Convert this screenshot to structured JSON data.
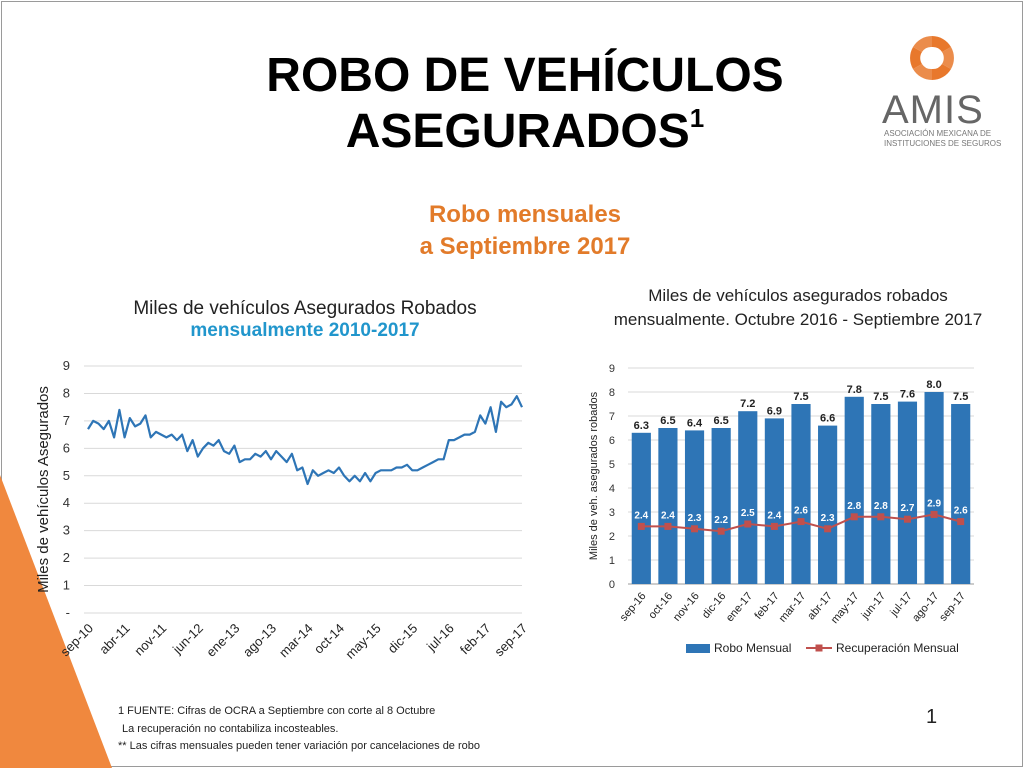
{
  "slide": {
    "title_line1": "ROBO DE VEHÍCULOS",
    "title_line2": "ASEGURADOS",
    "title_sup": "1",
    "subtitle_line1": "Robo mensuales",
    "subtitle_line2": "a Septiembre 2017",
    "logo_word": "AMIS",
    "logo_tag_line1": "ASOCIACIÓN MEXICANA DE",
    "logo_tag_line2": "INSTITUCIONES DE SEGUROS",
    "footnote1": "1 FUENTE: Cifras de OCRA a Septiembre con corte al 8 Octubre",
    "footnote2": "La recuperación no contabiliza incosteables.",
    "footnote3": "** Las cifras mensuales pueden tener variación por cancelaciones de robo",
    "page_number": "1",
    "colors": {
      "accent_orange": "#e27b2a",
      "title_blue": "#2196cc",
      "line_blue": "#2e75b6",
      "bar_blue": "#2e75b6",
      "marker_red": "#c0504d"
    }
  },
  "chart_data": [
    {
      "type": "line",
      "title": "Miles de vehículos Asegurados Robados",
      "title_accent": "mensualmente 2010-2017",
      "ylabel": "Miles de vehículos Asegurados",
      "ylim": [
        0,
        9
      ],
      "y_ticks": [
        "-",
        "1",
        "2",
        "3",
        "4",
        "5",
        "6",
        "7",
        "8",
        "9"
      ],
      "x_tick_labels": [
        "sep-10",
        "abr-11",
        "nov-11",
        "jun-12",
        "ene-13",
        "ago-13",
        "mar-14",
        "oct-14",
        "may-15",
        "dic-15",
        "jul-16",
        "feb-17",
        "sep-17"
      ],
      "grid": true,
      "series": [
        {
          "values": [
            6.7,
            7.0,
            6.9,
            6.7,
            7.0,
            6.4,
            7.4,
            6.4,
            7.1,
            6.8,
            6.9,
            7.2,
            6.4,
            6.6,
            6.5,
            6.4,
            6.5,
            6.3,
            6.5,
            5.9,
            6.3,
            5.7,
            6.0,
            6.2,
            6.1,
            6.3,
            5.9,
            5.8,
            6.1,
            5.5,
            5.6,
            5.6,
            5.8,
            5.7,
            5.9,
            5.6,
            5.9,
            5.7,
            5.5,
            5.8,
            5.2,
            5.3,
            4.7,
            5.2,
            5.0,
            5.1,
            5.2,
            5.1,
            5.3,
            5.0,
            4.8,
            5.0,
            4.8,
            5.1,
            4.8,
            5.1,
            5.2,
            5.2,
            5.2,
            5.3,
            5.3,
            5.4,
            5.2,
            5.2,
            5.3,
            5.4,
            5.5,
            5.6,
            5.6,
            6.3,
            6.3,
            6.4,
            6.5,
            6.5,
            6.6,
            7.2,
            6.9,
            7.5,
            6.6,
            7.7,
            7.5,
            7.6,
            7.9,
            7.5
          ]
        }
      ]
    },
    {
      "type": "bar",
      "title_line1": "Miles de vehículos asegurados robados",
      "title_line2": "mensualmente. Octubre 2016 - Septiembre 2017",
      "ylabel": "Miles de veh. asegurados robados",
      "ylim": [
        0,
        9
      ],
      "y_ticks": [
        "0",
        "1",
        "2",
        "3",
        "4",
        "5",
        "6",
        "7",
        "8",
        "9"
      ],
      "categories": [
        "sep-16",
        "oct-16",
        "nov-16",
        "dic-16",
        "ene-17",
        "feb-17",
        "mar-17",
        "abr-17",
        "may-17",
        "jun-17",
        "jul-17",
        "ago-17",
        "sep-17"
      ],
      "legend_position": "bottom",
      "series": [
        {
          "name": "Robo Mensual",
          "kind": "bar",
          "values": [
            6.3,
            6.5,
            6.4,
            6.5,
            7.2,
            6.9,
            7.5,
            6.6,
            7.8,
            7.5,
            7.6,
            8.0,
            7.5
          ],
          "labels": [
            "6.3",
            "6.5",
            "6.4",
            "6.5",
            "7.2",
            "6.9",
            "7.5",
            "6.6",
            "7.8",
            "7.5",
            "7.6",
            "8.0",
            "7.5"
          ]
        },
        {
          "name": "Recuperación Mensual",
          "kind": "line",
          "values": [
            2.4,
            2.4,
            2.3,
            2.2,
            2.5,
            2.4,
            2.6,
            2.3,
            2.8,
            2.8,
            2.7,
            2.9,
            2.6
          ],
          "labels": [
            "2.4",
            "2.4",
            "2.3",
            "2.2",
            "2.5",
            "2.4",
            "2.6",
            "2.3",
            "2.8",
            "2.8",
            "2.7",
            "2.9",
            "2.6"
          ]
        }
      ]
    }
  ]
}
